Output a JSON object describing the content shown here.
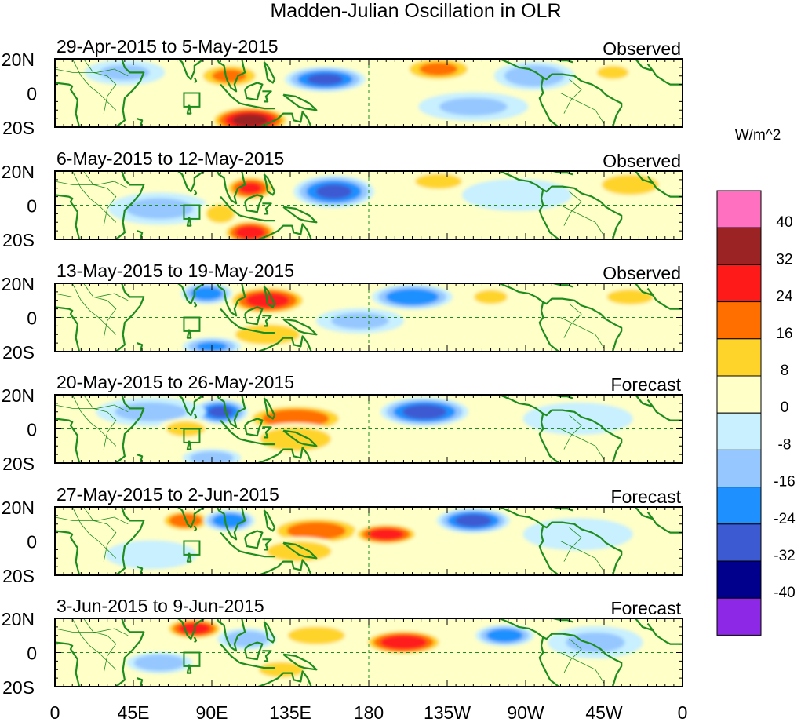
{
  "chart_data": {
    "type": "heatmap",
    "title": "Madden-Julian Oscillation in OLR",
    "units": "W/m^2",
    "x_ticks": [
      "0",
      "45E",
      "90E",
      "135E",
      "180",
      "135W",
      "90W",
      "45W",
      "0"
    ],
    "x_tick_lon": [
      0,
      45,
      90,
      135,
      180,
      225,
      270,
      315,
      360
    ],
    "y_ticks": [
      "20N",
      "0",
      "20S"
    ],
    "y_tick_lat": [
      20,
      0,
      -20
    ],
    "xlim": [
      0,
      360
    ],
    "ylim": [
      -20,
      20
    ],
    "colorbar": {
      "labels": [
        "40",
        "32",
        "24",
        "16",
        "8",
        "0",
        "-8",
        "-16",
        "-24",
        "-32",
        "-40"
      ],
      "colors": [
        "#ff70c0",
        "#9b2323",
        "#ff1a1a",
        "#ff6f00",
        "#ffd42a",
        "#ffffc8",
        "#c8f0ff",
        "#96c8ff",
        "#1e90ff",
        "#3c5ad2",
        "#00008c",
        "#8c28e6"
      ]
    },
    "panels": [
      {
        "period": "29-Apr-2015 to 5-May-2015",
        "status": "Observed",
        "anomalies": [
          {
            "lon": 112,
            "lat": -16,
            "value": 36,
            "rlon": 22,
            "rlat": 8
          },
          {
            "lon": 100,
            "lat": 10,
            "value": 18,
            "rlon": 18,
            "rlat": 7
          },
          {
            "lon": 155,
            "lat": 8,
            "value": -26,
            "rlon": 22,
            "rlat": 7
          },
          {
            "lon": 220,
            "lat": 14,
            "value": 18,
            "rlon": 20,
            "rlat": 7
          },
          {
            "lon": 275,
            "lat": 10,
            "value": -14,
            "rlon": 22,
            "rlat": 8
          },
          {
            "lon": 240,
            "lat": -8,
            "value": -9,
            "rlon": 30,
            "rlat": 8
          },
          {
            "lon": 40,
            "lat": 12,
            "value": -9,
            "rlon": 22,
            "rlat": 7
          },
          {
            "lon": 320,
            "lat": 12,
            "value": 9,
            "rlon": 14,
            "rlat": 6
          }
        ]
      },
      {
        "period": "6-May-2015 to 12-May-2015",
        "status": "Observed",
        "anomalies": [
          {
            "lon": 112,
            "lat": 10,
            "value": 26,
            "rlon": 14,
            "rlat": 7
          },
          {
            "lon": 112,
            "lat": -16,
            "value": 30,
            "rlon": 15,
            "rlat": 7
          },
          {
            "lon": 160,
            "lat": 8,
            "value": -26,
            "rlon": 22,
            "rlat": 9
          },
          {
            "lon": 220,
            "lat": 14,
            "value": 12,
            "rlon": 18,
            "rlat": 6
          },
          {
            "lon": 330,
            "lat": 12,
            "value": 12,
            "rlon": 22,
            "rlat": 8
          },
          {
            "lon": 60,
            "lat": -2,
            "value": -10,
            "rlon": 28,
            "rlat": 9
          },
          {
            "lon": 265,
            "lat": 6,
            "value": -8,
            "rlon": 30,
            "rlat": 9
          },
          {
            "lon": 95,
            "lat": -5,
            "value": 10,
            "rlon": 12,
            "rlat": 8
          }
        ]
      },
      {
        "period": "13-May-2015 to 19-May-2015",
        "status": "Observed",
        "anomalies": [
          {
            "lon": 122,
            "lat": 10,
            "value": 30,
            "rlon": 22,
            "rlat": 8
          },
          {
            "lon": 122,
            "lat": -10,
            "value": 12,
            "rlon": 25,
            "rlat": 8
          },
          {
            "lon": 87,
            "lat": 14,
            "value": -22,
            "rlon": 14,
            "rlat": 6
          },
          {
            "lon": 205,
            "lat": 12,
            "value": -24,
            "rlon": 22,
            "rlat": 7
          },
          {
            "lon": 330,
            "lat": 12,
            "value": 12,
            "rlon": 18,
            "rlat": 6
          },
          {
            "lon": 250,
            "lat": 12,
            "value": 10,
            "rlon": 14,
            "rlat": 6
          },
          {
            "lon": 90,
            "lat": -17,
            "value": -18,
            "rlon": 16,
            "rlat": 5
          },
          {
            "lon": 175,
            "lat": -2,
            "value": -10,
            "rlon": 24,
            "rlat": 7
          },
          {
            "lon": 40,
            "lat": 0,
            "value": 6,
            "rlon": 30,
            "rlat": 10
          }
        ]
      },
      {
        "period": "20-May-2015 to 26-May-2015",
        "status": "Forecast",
        "anomalies": [
          {
            "lon": 138,
            "lat": 6,
            "value": 24,
            "rlon": 28,
            "rlat": 8
          },
          {
            "lon": 138,
            "lat": -6,
            "value": 14,
            "rlon": 26,
            "rlat": 9
          },
          {
            "lon": 95,
            "lat": 10,
            "value": -26,
            "rlon": 15,
            "rlat": 7
          },
          {
            "lon": 212,
            "lat": 10,
            "value": -28,
            "rlon": 24,
            "rlat": 8
          },
          {
            "lon": 90,
            "lat": -17,
            "value": -14,
            "rlon": 16,
            "rlat": 5
          },
          {
            "lon": 55,
            "lat": 10,
            "value": -10,
            "rlon": 30,
            "rlat": 8
          },
          {
            "lon": 300,
            "lat": 6,
            "value": -8,
            "rlon": 30,
            "rlat": 9
          },
          {
            "lon": 75,
            "lat": 0,
            "value": 12,
            "rlon": 15,
            "rlat": 6
          }
        ]
      },
      {
        "period": "27-May-2015 to 2-Jun-2015",
        "status": "Forecast",
        "anomalies": [
          {
            "lon": 150,
            "lat": 6,
            "value": 22,
            "rlon": 26,
            "rlat": 8
          },
          {
            "lon": 190,
            "lat": 4,
            "value": 30,
            "rlon": 18,
            "rlat": 6
          },
          {
            "lon": 75,
            "lat": 12,
            "value": 24,
            "rlon": 14,
            "rlat": 6
          },
          {
            "lon": 100,
            "lat": 12,
            "value": -24,
            "rlon": 14,
            "rlat": 6
          },
          {
            "lon": 240,
            "lat": 12,
            "value": -28,
            "rlon": 20,
            "rlat": 7
          },
          {
            "lon": 140,
            "lat": -6,
            "value": 12,
            "rlon": 25,
            "rlat": 8
          },
          {
            "lon": 55,
            "lat": -8,
            "value": -8,
            "rlon": 25,
            "rlat": 8
          },
          {
            "lon": 300,
            "lat": 4,
            "value": -8,
            "rlon": 30,
            "rlat": 9
          }
        ]
      },
      {
        "period": "3-Jun-2015 to 9-Jun-2015",
        "status": "Forecast",
        "anomalies": [
          {
            "lon": 80,
            "lat": 14,
            "value": 30,
            "rlon": 16,
            "rlat": 6
          },
          {
            "lon": 200,
            "lat": 6,
            "value": 32,
            "rlon": 22,
            "rlat": 7
          },
          {
            "lon": 150,
            "lat": 10,
            "value": 12,
            "rlon": 22,
            "rlat": 7
          },
          {
            "lon": 258,
            "lat": 10,
            "value": -22,
            "rlon": 16,
            "rlat": 6
          },
          {
            "lon": 110,
            "lat": 8,
            "value": -14,
            "rlon": 16,
            "rlat": 6
          },
          {
            "lon": 60,
            "lat": -6,
            "value": -16,
            "rlon": 18,
            "rlat": 6
          },
          {
            "lon": 310,
            "lat": 6,
            "value": -9,
            "rlon": 26,
            "rlat": 9
          },
          {
            "lon": 130,
            "lat": -10,
            "value": 9,
            "rlon": 20,
            "rlat": 7
          }
        ]
      }
    ]
  }
}
